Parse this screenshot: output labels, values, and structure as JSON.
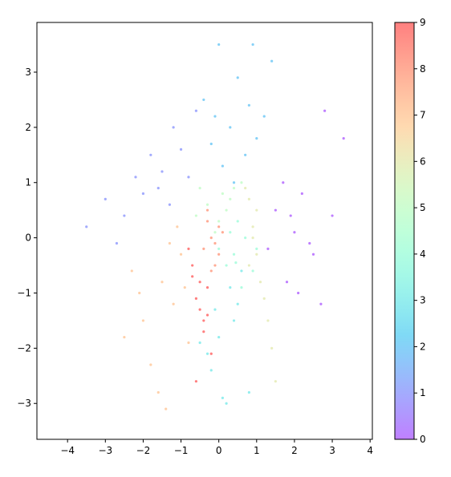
{
  "chart_data": {
    "type": "scatter",
    "x": [
      2.0,
      1.5,
      2.5,
      1.8,
      2.2,
      3.0,
      1.3,
      2.7,
      2.1,
      1.7,
      3.3,
      2.4,
      1.9,
      2.8,
      -1.5,
      -2.0,
      -1.0,
      -2.5,
      -1.2,
      -3.0,
      -1.8,
      -0.8,
      -2.2,
      -1.3,
      -3.5,
      -0.6,
      -2.7,
      -1.6,
      0.3,
      0.8,
      -0.2,
      1.0,
      0.5,
      0.1,
      1.2,
      -0.4,
      0.7,
      0.0,
      1.4,
      0.4,
      0.9,
      -0.1,
      0.3,
      0.0,
      -0.2,
      0.5,
      0.1,
      -0.5,
      0.6,
      0.2,
      -0.3,
      0.4,
      0.8,
      -0.1,
      0.4,
      0.7,
      0.2,
      0.9,
      0.5,
      0.0,
      0.6,
      0.3,
      1.0,
      0.45,
      0.1,
      -0.3,
      0.4,
      0.0,
      -0.5,
      0.2,
      0.6,
      -0.1,
      0.3,
      -0.6,
      0.9,
      1.0,
      0.8,
      1.1,
      0.7,
      1.3,
      1.4,
      0.9,
      1.2,
      1.5,
      0.8,
      1.0,
      -1.5,
      -2.0,
      -1.0,
      -1.8,
      -1.2,
      -2.3,
      -0.8,
      -1.6,
      -1.1,
      -2.5,
      -0.9,
      -1.4,
      -2.1,
      -1.3,
      -0.2,
      0.0,
      -0.3,
      -0.1,
      -0.4,
      0.1,
      -0.2,
      -0.3,
      0.0,
      -0.1,
      -0.5,
      -0.7,
      -0.3,
      -0.6,
      -0.4,
      -0.2,
      -0.8,
      -0.5,
      -0.3,
      -0.6,
      -0.7,
      -0.4
    ],
    "y": [
      0.1,
      0.5,
      -0.3,
      -0.8,
      0.8,
      0.4,
      -0.2,
      -1.2,
      -1.0,
      1.0,
      1.8,
      -0.1,
      0.4,
      2.3,
      1.2,
      0.8,
      1.6,
      0.4,
      2.0,
      0.7,
      1.5,
      1.1,
      1.1,
      0.6,
      0.2,
      2.3,
      -0.1,
      0.9,
      2.0,
      2.4,
      1.7,
      1.8,
      2.9,
      1.3,
      2.2,
      2.5,
      1.5,
      3.5,
      3.2,
      1.0,
      3.5,
      2.2,
      -0.9,
      -1.8,
      -2.4,
      -1.2,
      -2.9,
      -1.9,
      -0.6,
      -3.0,
      -2.1,
      -1.5,
      -2.8,
      -1.3,
      -0.3,
      0.0,
      -0.5,
      -0.6,
      0.3,
      -0.2,
      -0.9,
      0.1,
      -0.2,
      -0.45,
      0.8,
      0.6,
      0.9,
      0.3,
      0.9,
      0.5,
      1.0,
      0.1,
      0.7,
      0.4,
      0.2,
      -0.3,
      0.7,
      -0.8,
      0.9,
      -1.5,
      -2.0,
      0.0,
      -1.1,
      -2.6,
      -0.5,
      0.5,
      -0.8,
      -1.5,
      -0.3,
      -2.3,
      -1.2,
      -0.6,
      -1.9,
      -2.8,
      0.2,
      -1.8,
      -0.9,
      -3.1,
      -1.0,
      -0.1,
      0.0,
      -0.3,
      0.3,
      -0.5,
      -0.2,
      0.1,
      -0.6,
      0.5,
      0.2,
      -0.1,
      -0.8,
      -0.5,
      -1.4,
      -1.1,
      -1.7,
      -2.1,
      -0.2,
      -1.3,
      -0.9,
      -2.6,
      -0.7,
      -1.5
    ],
    "c": [
      0,
      0,
      0,
      0,
      0,
      0,
      0,
      0,
      0,
      0,
      0,
      0,
      0,
      0,
      1,
      1,
      1,
      1,
      1,
      1,
      1,
      1,
      1,
      1,
      1,
      1,
      1,
      1,
      2,
      2,
      2,
      2,
      2,
      2,
      2,
      2,
      2,
      2,
      2,
      2,
      2,
      2,
      3,
      3,
      3,
      3,
      3,
      3,
      3,
      3,
      3,
      3,
      3,
      3,
      4,
      4,
      4,
      4,
      4,
      4,
      4,
      4,
      4,
      4,
      5,
      5,
      5,
      5,
      5,
      5,
      5,
      5,
      5,
      5,
      6,
      6,
      6,
      6,
      6,
      6,
      6,
      6,
      6,
      6,
      6,
      6,
      7,
      7,
      7,
      7,
      7,
      7,
      7,
      7,
      7,
      7,
      7,
      7,
      7,
      7,
      8,
      8,
      8,
      8,
      8,
      8,
      8,
      8,
      8,
      8,
      9,
      9,
      9,
      9,
      9,
      9,
      9,
      9,
      9,
      9,
      9,
      9
    ],
    "colormap": "rainbow",
    "alpha": 0.5,
    "xlim": [
      -4.81,
      4.06
    ],
    "ylim": [
      -3.65,
      3.9
    ],
    "clim": [
      0,
      9
    ],
    "xticks": [
      {
        "value": -4,
        "label": "−4"
      },
      {
        "value": -3,
        "label": "−3"
      },
      {
        "value": -2,
        "label": "−2"
      },
      {
        "value": -1,
        "label": "−1"
      },
      0,
      1,
      2,
      3,
      4
    ],
    "yticks": [
      {
        "value": -3,
        "label": "−3"
      },
      {
        "value": -2,
        "label": "−2"
      },
      {
        "value": -1,
        "label": "−1"
      },
      0,
      1,
      2,
      3
    ],
    "cticks": [
      0,
      1,
      2,
      3,
      4,
      5,
      6,
      7,
      8,
      9
    ]
  }
}
